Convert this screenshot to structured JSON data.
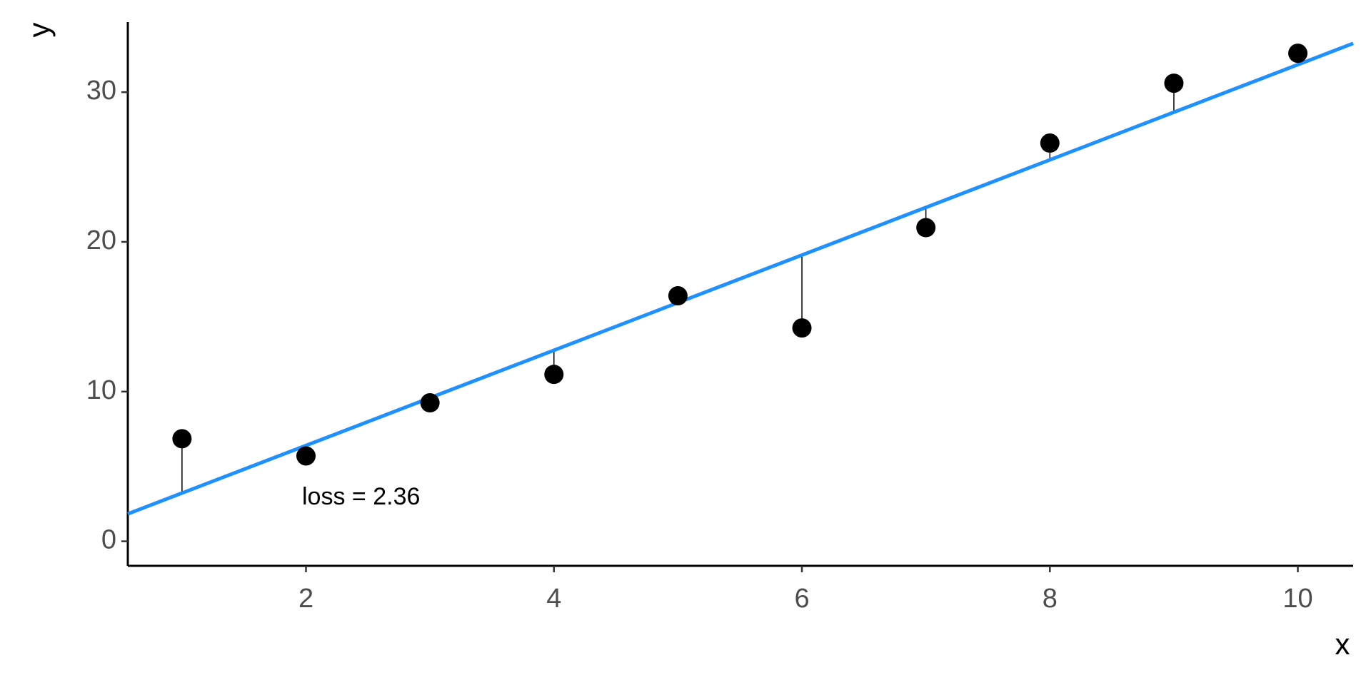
{
  "chart_data": {
    "type": "scatter",
    "x_label": "x",
    "y_label": "y",
    "x": [
      1,
      2,
      3,
      4,
      5,
      6,
      7,
      8,
      9,
      10
    ],
    "values": [
      6.85,
      5.7,
      9.25,
      11.15,
      16.4,
      14.25,
      20.95,
      26.6,
      30.6,
      32.6
    ],
    "color": "#000000",
    "fit": {
      "intercept": 0.04,
      "slope": 3.18,
      "color": "#1e90ff"
    },
    "annotation": "loss = 2.36",
    "xlim": [
      0.563,
      10.446
    ],
    "xticks": [
      2,
      4,
      6,
      8,
      10
    ],
    "ylim": [
      -1.64,
      34.68
    ],
    "yticks": [
      0,
      10,
      20,
      30
    ],
    "grid": false
  }
}
